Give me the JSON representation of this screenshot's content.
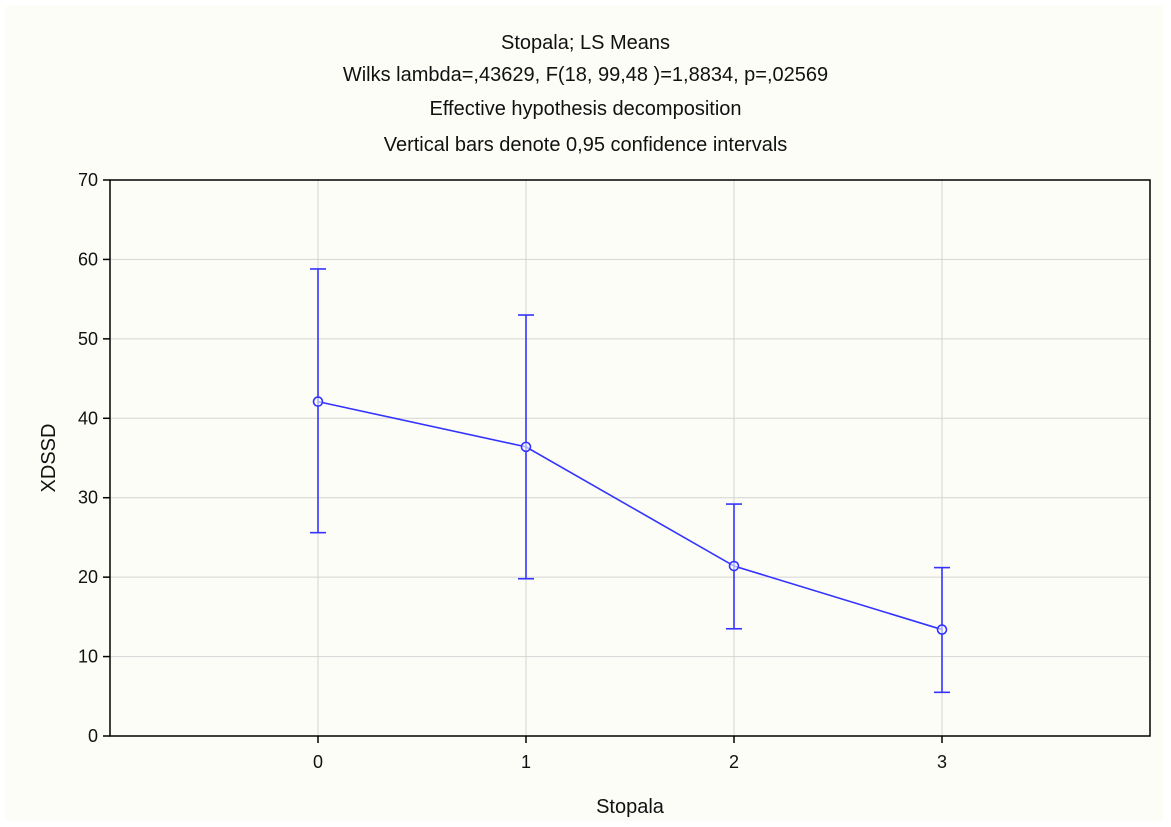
{
  "chart_data": {
    "type": "line",
    "title": "Stopala; LS Means",
    "subtitle": [
      "Wilks lambda=,43629, F(18, 99,48 )=1,8834, p=,02569",
      "Effective hypothesis decomposition",
      "Vertical bars denote 0,95 confidence intervals"
    ],
    "xlabel": "Stopala",
    "ylabel": "XDSSD",
    "x": [
      0,
      1,
      2,
      3
    ],
    "xlim": [
      -1,
      4
    ],
    "ylim": [
      0,
      70
    ],
    "yticks": [
      0,
      10,
      20,
      30,
      40,
      50,
      60,
      70
    ],
    "xticks": [
      0,
      1,
      2,
      3
    ],
    "grid": true,
    "series": [
      {
        "values": [
          42.1,
          36.4,
          21.4,
          13.4
        ],
        "ci_lower": [
          25.6,
          19.8,
          13.5,
          5.5
        ],
        "ci_upper": [
          58.8,
          53.0,
          29.2,
          21.2
        ],
        "color": "#3333ff"
      }
    ]
  }
}
